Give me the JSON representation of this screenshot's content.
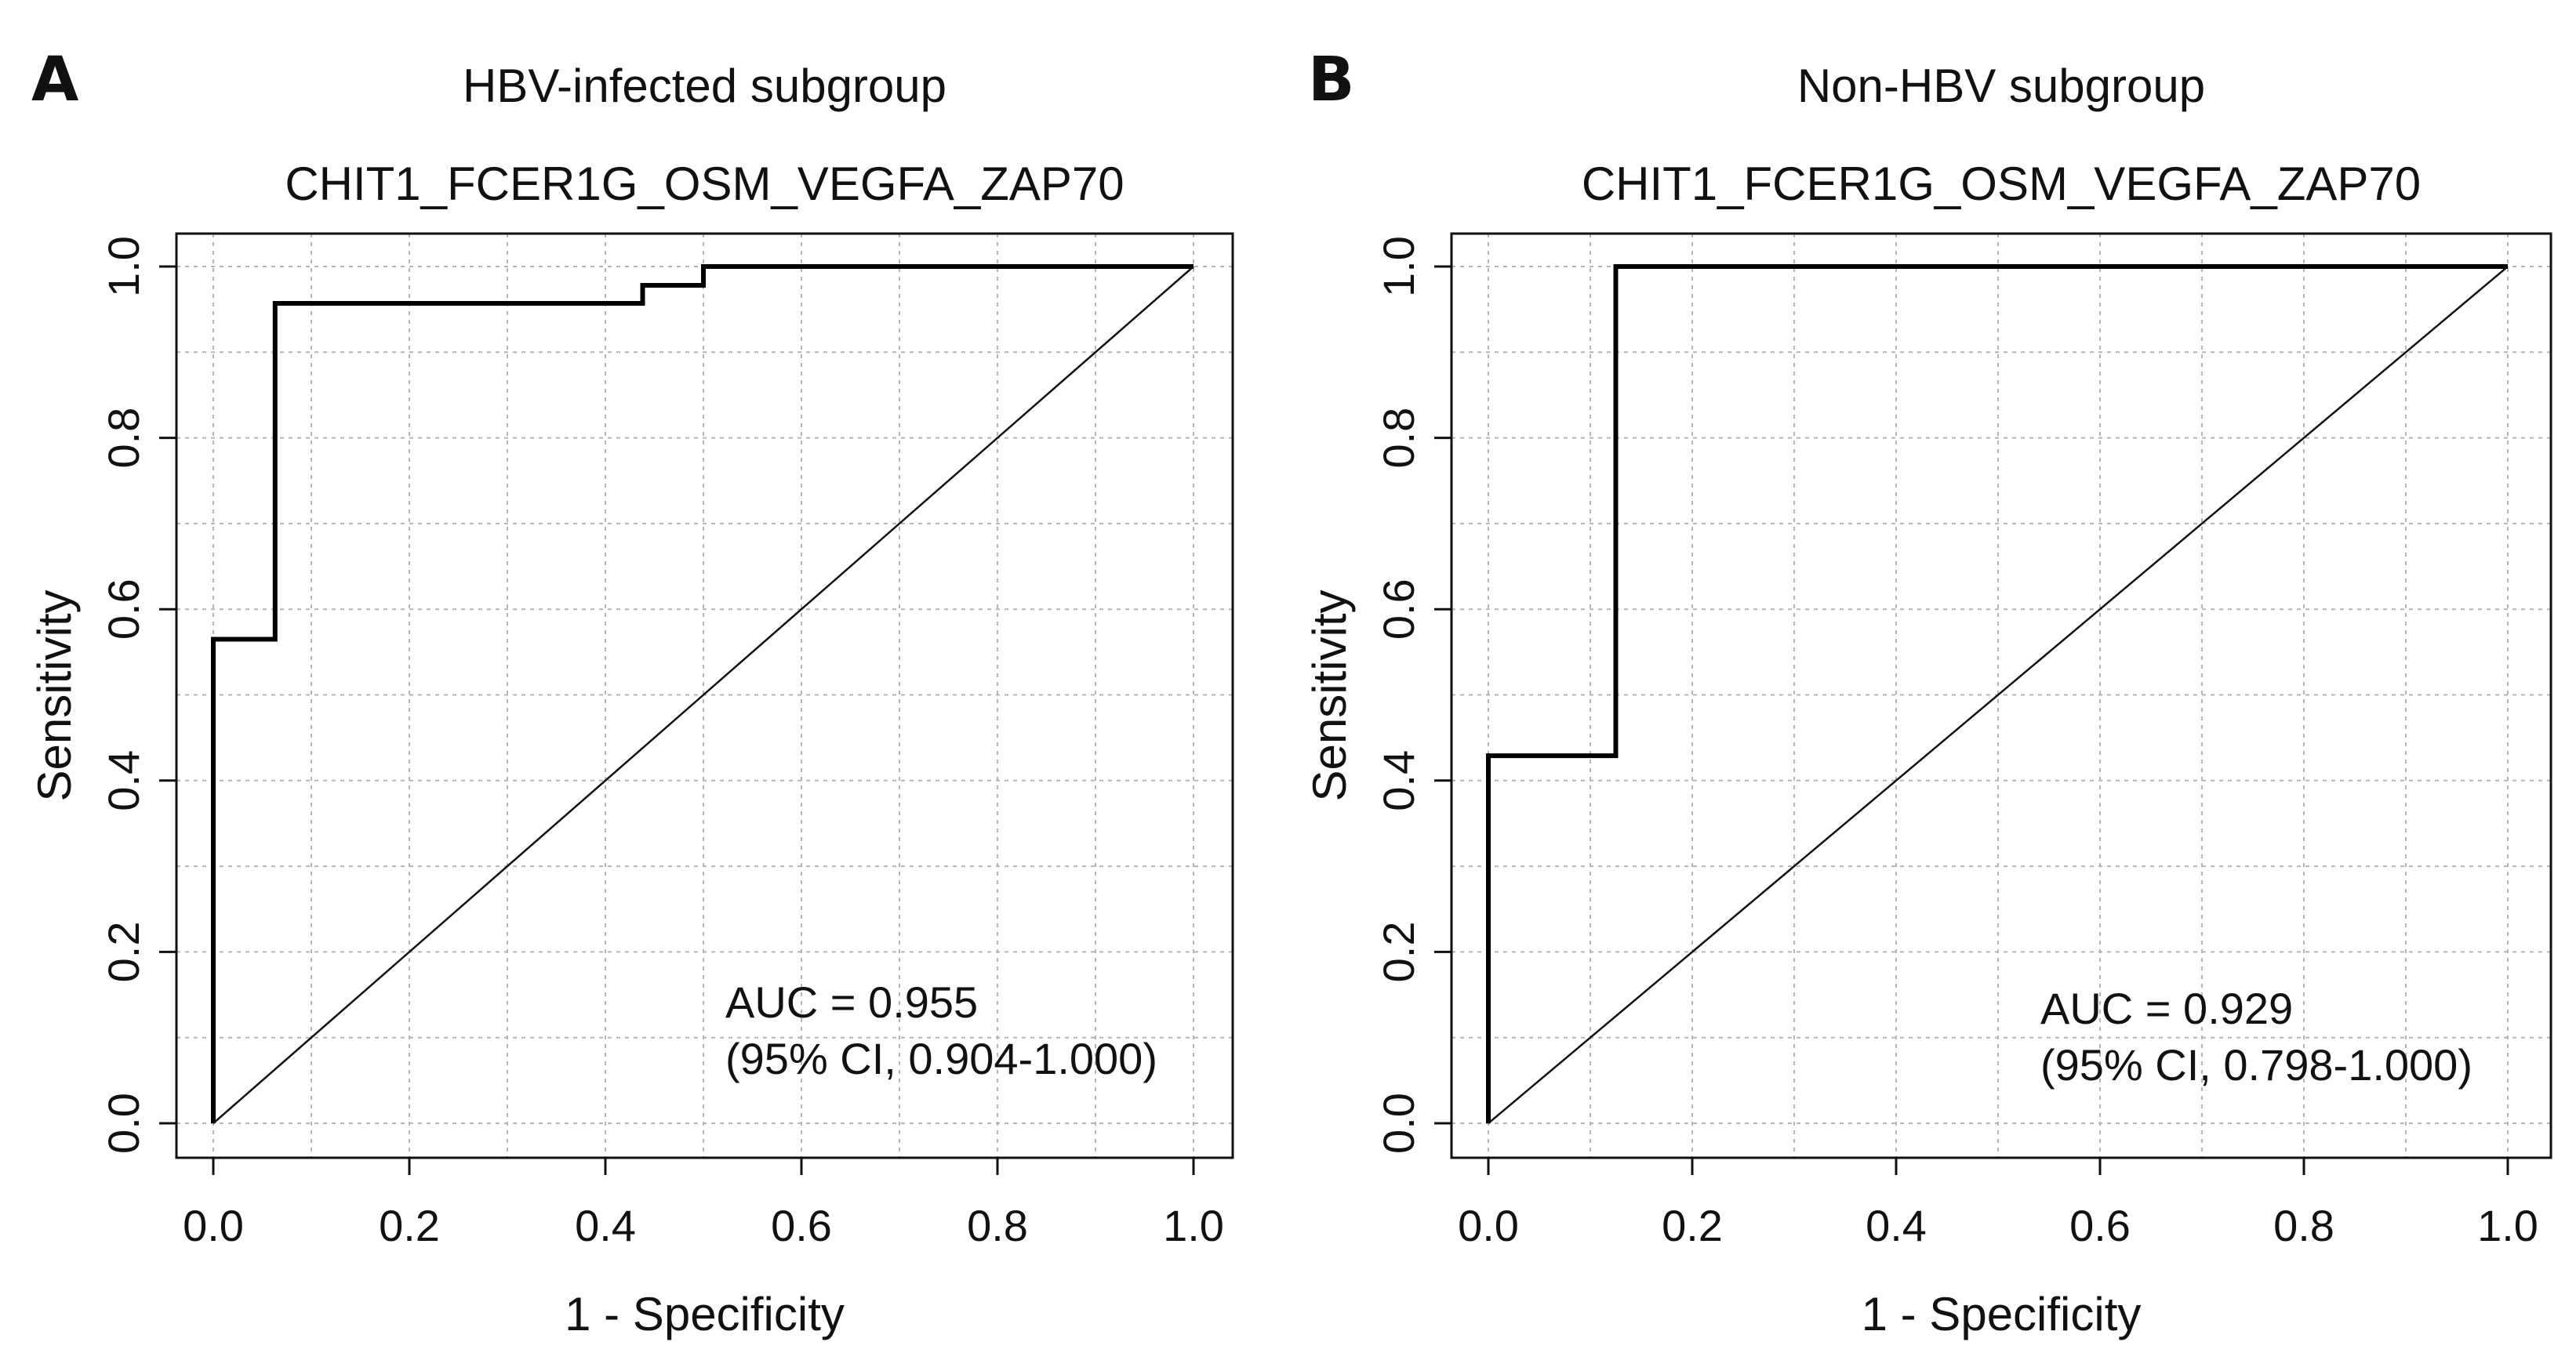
{
  "chart_data": [
    {
      "type": "line",
      "panel_letter": "A",
      "title": "HBV-infected subgroup",
      "subtitle": "CHIT1_FCER1G_OSM_VEGFA_ZAP70",
      "xlabel": "1 - Specificity",
      "ylabel": "Sensitivity",
      "xlim": [
        0,
        1
      ],
      "ylim": [
        0,
        1
      ],
      "xticks": [
        "0.0",
        "0.2",
        "0.4",
        "0.6",
        "0.8",
        "1.0"
      ],
      "yticks": [
        "0.0",
        "0.2",
        "0.4",
        "0.6",
        "0.8",
        "1.0"
      ],
      "grid": true,
      "series": [
        {
          "name": "ROC",
          "x": [
            0.0,
            0.0,
            0.063,
            0.063,
            0.438,
            0.438,
            0.5,
            0.5,
            1.0
          ],
          "y": [
            0.0,
            0.565,
            0.565,
            0.957,
            0.957,
            0.978,
            0.978,
            1.0,
            1.0
          ]
        },
        {
          "name": "reference",
          "x": [
            0,
            1
          ],
          "y": [
            0,
            1
          ]
        }
      ],
      "annotation": [
        "AUC = 0.955",
        "(95% CI, 0.904-1.000)"
      ]
    },
    {
      "type": "line",
      "panel_letter": "B",
      "title": "Non-HBV subgroup",
      "subtitle": "CHIT1_FCER1G_OSM_VEGFA_ZAP70",
      "xlabel": "1 - Specificity",
      "ylabel": "Sensitivity",
      "xlim": [
        0,
        1
      ],
      "ylim": [
        0,
        1
      ],
      "xticks": [
        "0.0",
        "0.2",
        "0.4",
        "0.6",
        "0.8",
        "1.0"
      ],
      "yticks": [
        "0.0",
        "0.2",
        "0.4",
        "0.6",
        "0.8",
        "1.0"
      ],
      "grid": true,
      "series": [
        {
          "name": "ROC",
          "x": [
            0.0,
            0.0,
            0.125,
            0.125,
            1.0
          ],
          "y": [
            0.0,
            0.429,
            0.429,
            1.0,
            1.0
          ]
        },
        {
          "name": "reference",
          "x": [
            0,
            1
          ],
          "y": [
            0,
            1
          ]
        }
      ],
      "annotation": [
        "AUC = 0.929",
        "(95% CI, 0.798-1.000)"
      ]
    }
  ]
}
